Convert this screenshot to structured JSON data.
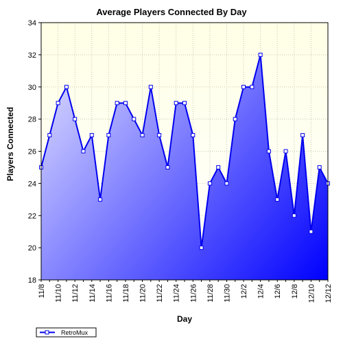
{
  "chart_data": {
    "type": "area",
    "title": "Average Players Connected By Day",
    "xlabel": "Day",
    "ylabel": "Players Connected",
    "ylim": [
      18,
      34
    ],
    "yticks": [
      18,
      20,
      22,
      24,
      26,
      28,
      30,
      32,
      34
    ],
    "grid": true,
    "legend_position": "bottom-left",
    "x": [
      "11/8",
      "11/9",
      "11/10",
      "11/11",
      "11/12",
      "11/13",
      "11/14",
      "11/15",
      "11/16",
      "11/17",
      "11/18",
      "11/19",
      "11/20",
      "11/21",
      "11/22",
      "11/23",
      "11/24",
      "11/25",
      "11/26",
      "11/27",
      "11/28",
      "11/29",
      "11/30",
      "12/1",
      "12/2",
      "12/3",
      "12/4",
      "12/5",
      "12/6",
      "12/7",
      "12/8",
      "12/9",
      "12/10",
      "12/11",
      "12/12"
    ],
    "xtick_labels": [
      "11/8",
      "11/10",
      "11/12",
      "11/14",
      "11/16",
      "11/18",
      "11/20",
      "11/22",
      "11/24",
      "11/26",
      "11/28",
      "11/30",
      "12/2",
      "12/4",
      "12/6",
      "12/8",
      "12/10",
      "12/12"
    ],
    "series": [
      {
        "name": "RetroMux",
        "values": [
          25,
          27,
          29,
          30,
          28,
          26,
          27,
          23,
          27,
          29,
          29,
          28,
          27,
          30,
          27,
          25,
          29,
          29,
          27,
          20,
          24,
          25,
          24,
          28,
          30,
          30,
          32,
          26,
          23,
          26,
          22,
          27,
          21,
          25,
          24
        ]
      }
    ],
    "colors": {
      "line": "#0000ee",
      "fill_light": "#e6e6ff",
      "fill_dark": "#0000ff",
      "plot_background_top": "#ffffe6",
      "plot_background_bottom": "#ffffff",
      "grid": "#c8c8b4",
      "marker_fill": "#ffffff"
    }
  }
}
